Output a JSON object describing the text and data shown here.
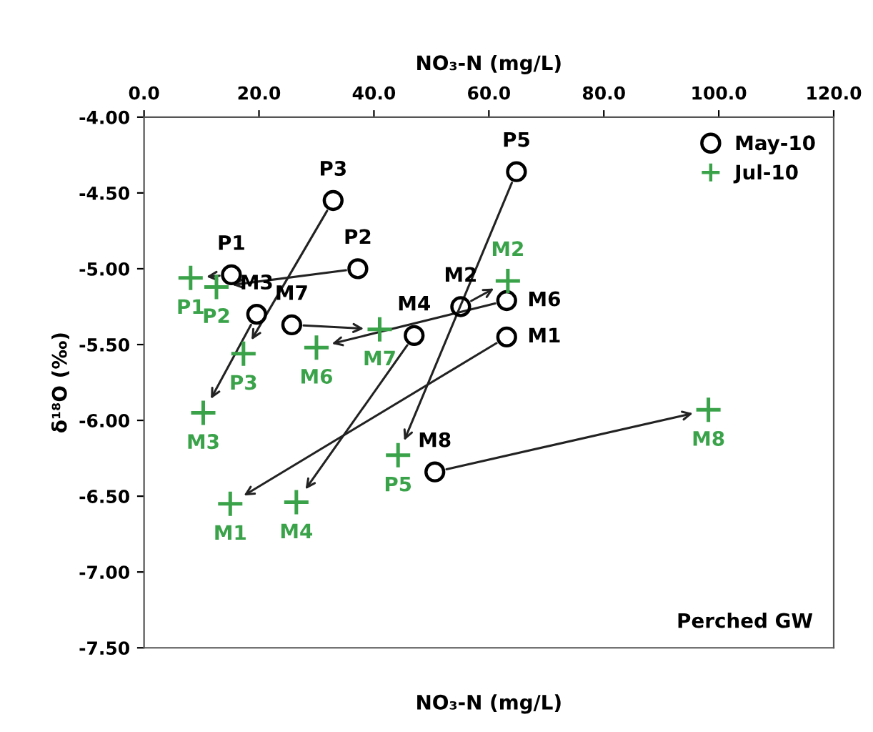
{
  "chart_data": {
    "type": "scatter",
    "xlabel": "NO₃-N (mg/L)",
    "ylabel": "δ¹⁸O (‰)",
    "xlim": [
      0,
      120
    ],
    "ylim": [
      -7.5,
      -4.0
    ],
    "xticks": [
      {
        "value": 0,
        "label": "0.0"
      },
      {
        "value": 20,
        "label": "20.0"
      },
      {
        "value": 40,
        "label": "40.0"
      },
      {
        "value": 60,
        "label": "60.0"
      },
      {
        "value": 80,
        "label": "80.0"
      },
      {
        "value": 100,
        "label": "100.0"
      },
      {
        "value": 120,
        "label": "120.0"
      }
    ],
    "yticks": [
      {
        "value": -4.0,
        "label": "-4.00"
      },
      {
        "value": -4.5,
        "label": "-4.50"
      },
      {
        "value": -5.0,
        "label": "-5.00"
      },
      {
        "value": -5.5,
        "label": "-5.50"
      },
      {
        "value": -6.0,
        "label": "-6.00"
      },
      {
        "value": -6.5,
        "label": "-6.50"
      },
      {
        "value": -7.0,
        "label": "-7.00"
      },
      {
        "value": -7.5,
        "label": "-7.50"
      }
    ],
    "series": [
      {
        "name": "May-10",
        "color": "#000000",
        "marker": "circle",
        "x": [
          15.2,
          37.2,
          32.9,
          64.8,
          63.1,
          55.1,
          19.6,
          47.0,
          63.1,
          25.7,
          50.6
        ],
        "values": [
          -5.04,
          -5.0,
          -4.55,
          -4.36,
          -5.45,
          -5.25,
          -5.3,
          -5.44,
          -5.21,
          -5.37,
          -6.34
        ]
      },
      {
        "name": "Jul-10",
        "color": "#3aa34a",
        "marker": "cross",
        "x": [
          8.1,
          12.6,
          17.3,
          44.2,
          15.0,
          63.3,
          10.3,
          26.5,
          30.0,
          41.0,
          98.2
        ],
        "values": [
          -5.06,
          -5.12,
          -5.56,
          -6.23,
          -6.55,
          -5.08,
          -5.95,
          -6.54,
          -5.52,
          -5.4,
          -5.93
        ]
      }
    ],
    "annotations": [
      {
        "text": "P1",
        "x": 15.2,
        "y": -5.04
      },
      {
        "text": "P2",
        "x": 37.2,
        "y": -5.0
      },
      {
        "text": "P3",
        "x": 32.9,
        "y": -4.55
      },
      {
        "text": "P5",
        "x": 64.8,
        "y": -4.36
      },
      {
        "text": "M1",
        "x": 63.1,
        "y": -5.45
      },
      {
        "text": "M2",
        "x": 55.1,
        "y": -5.25
      },
      {
        "text": "M3",
        "x": 19.6,
        "y": -5.3
      },
      {
        "text": "M4",
        "x": 47.0,
        "y": -5.44
      },
      {
        "text": "M6",
        "x": 63.1,
        "y": -5.21
      },
      {
        "text": "M7",
        "x": 25.7,
        "y": -5.37
      },
      {
        "text": "M8",
        "x": 50.6,
        "y": -6.34
      },
      {
        "text": "P1",
        "x": 8.1,
        "y": -5.06
      },
      {
        "text": "P2",
        "x": 12.6,
        "y": -5.12
      },
      {
        "text": "P3",
        "x": 17.3,
        "y": -5.56
      },
      {
        "text": "P5",
        "x": 44.2,
        "y": -6.23
      },
      {
        "text": "M1",
        "x": 15.0,
        "y": -6.55
      },
      {
        "text": "M2",
        "x": 63.3,
        "y": -5.08
      },
      {
        "text": "M3",
        "x": 10.3,
        "y": -5.95
      },
      {
        "text": "M4",
        "x": 26.5,
        "y": -6.54
      },
      {
        "text": "M6",
        "x": 30.0,
        "y": -5.52
      },
      {
        "text": "M7",
        "x": 41.0,
        "y": -5.4
      },
      {
        "text": "M8",
        "x": 98.2,
        "y": -5.93
      },
      "Perched GW",
      "NO₃-N (mg/L)"
    ],
    "legend": "top right",
    "grid": false
  }
}
